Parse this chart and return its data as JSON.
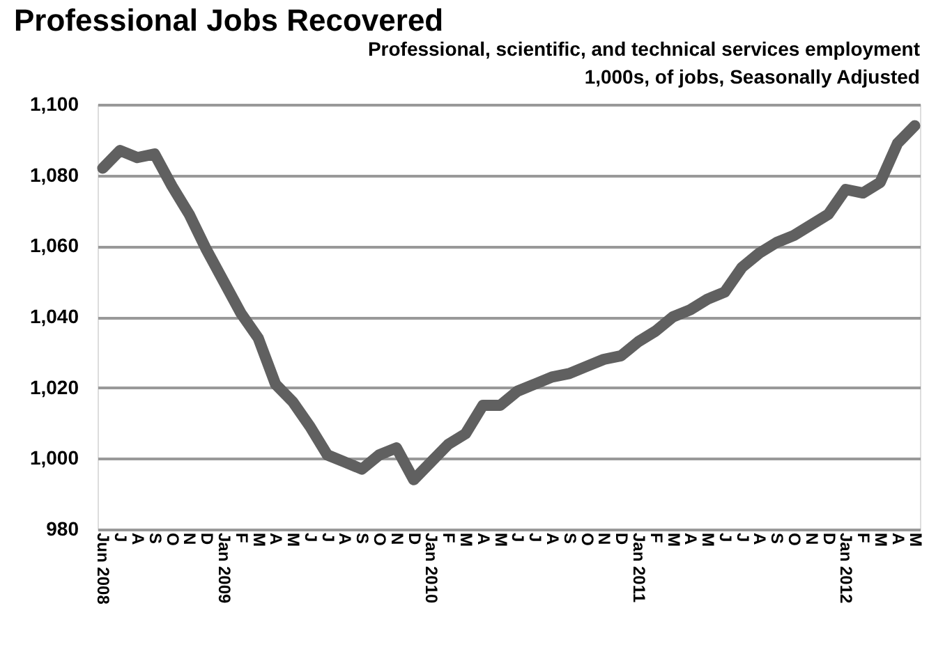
{
  "chart_data": {
    "type": "line",
    "title": "Professional Jobs Recovered",
    "subtitle": "Professional, scientific, and technical services employment\n1,000s, of jobs, Seasonally Adjusted",
    "categories": [
      "Jun 2008",
      "J",
      "A",
      "S",
      "O",
      "N",
      "D",
      "Jan 2009",
      "F",
      "M",
      "A",
      "M",
      "J",
      "J",
      "A",
      "S",
      "O",
      "N",
      "D",
      "Jan 2010",
      "F",
      "M",
      "A",
      "M",
      "J",
      "J",
      "A",
      "S",
      "O",
      "N",
      "D",
      "Jan 2011",
      "F",
      "M",
      "A",
      "M",
      "J",
      "J",
      "A",
      "S",
      "O",
      "N",
      "D",
      "Jan 2012",
      "F",
      "M",
      "A",
      "M"
    ],
    "series": [
      {
        "color": "#606060",
        "values": [
          1082,
          1087,
          1085,
          1086,
          1077,
          1069,
          1059,
          1050,
          1041,
          1034,
          1021,
          1016,
          1009,
          1001,
          999,
          997,
          1001,
          1003,
          994,
          999,
          1004,
          1007,
          1015,
          1015,
          1019,
          1021,
          1023,
          1024,
          1026,
          1028,
          1029,
          1033,
          1036,
          1040,
          1042,
          1045,
          1047,
          1054,
          1058,
          1061,
          1063,
          1066,
          1069,
          1076,
          1075,
          1078,
          1089,
          1094
        ]
      }
    ],
    "ylim": [
      980,
      1100
    ],
    "yticks": [
      {
        "value": 980,
        "label": "980"
      },
      {
        "value": 1000,
        "label": "1,000"
      },
      {
        "value": 1020,
        "label": "1,020"
      },
      {
        "value": 1040,
        "label": "1,040"
      },
      {
        "value": 1060,
        "label": "1,060"
      },
      {
        "value": 1080,
        "label": "1,080"
      },
      {
        "value": 1100,
        "label": "1,100"
      }
    ],
    "grid": "y",
    "line_style": "solid"
  }
}
